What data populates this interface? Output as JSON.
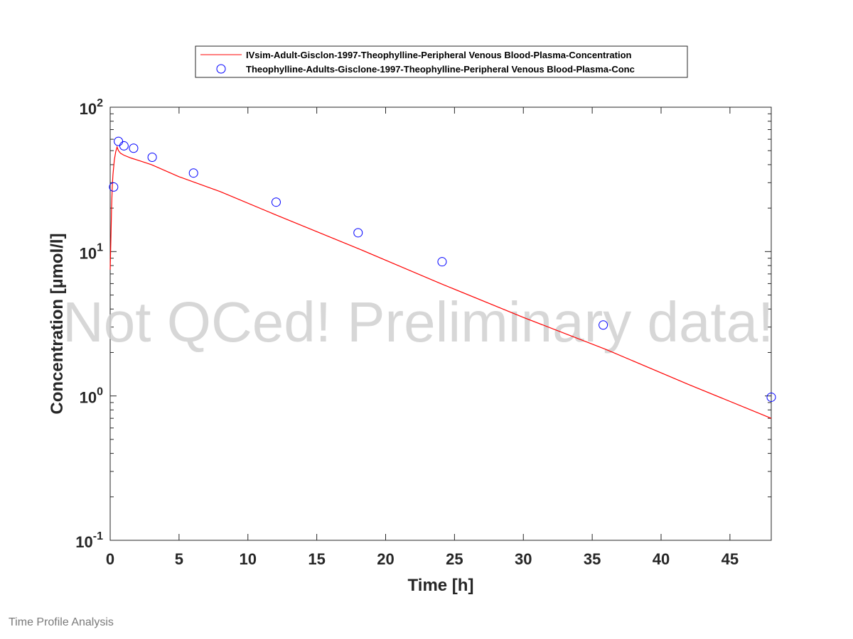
{
  "footer": "Time Profile Analysis",
  "watermark": "Not QCed! Preliminary data!",
  "chart_data": {
    "type": "line",
    "title": "",
    "xlabel": "Time [h]",
    "ylabel": "Concentration [µmol/l]",
    "xlim": [
      0,
      48
    ],
    "ylim": [
      0.1,
      100
    ],
    "yscale": "log",
    "xticks": [
      0,
      5,
      10,
      15,
      20,
      25,
      30,
      35,
      40,
      45
    ],
    "xtick_labels": [
      "0",
      "5",
      "10",
      "15",
      "20",
      "25",
      "30",
      "35",
      "40",
      "45"
    ],
    "yticks": [
      0.1,
      1,
      10,
      100
    ],
    "ytick_labels": [
      {
        "base": "10",
        "exp": "-1"
      },
      {
        "base": "10",
        "exp": "0"
      },
      {
        "base": "10",
        "exp": "1"
      },
      {
        "base": "10",
        "exp": "2"
      }
    ],
    "grid": false,
    "legend_position": "top (outside)",
    "series": [
      {
        "name": "IVsim-Adult-Gisclon-1997-Theophylline-Peripheral Venous Blood-Plasma-Concentration",
        "kind": "line",
        "color": "#ff0000",
        "x": [
          0,
          0.05,
          0.1,
          0.15,
          0.2,
          0.3,
          0.4,
          0.5,
          0.6,
          0.75,
          1,
          1.5,
          2,
          3,
          5,
          8,
          12,
          18,
          24,
          30,
          36,
          42,
          48
        ],
        "y": [
          7.5,
          12,
          20,
          28,
          34,
          43,
          49,
          53,
          50,
          48,
          46.5,
          44.5,
          43,
          40,
          33,
          26,
          18,
          10.5,
          6,
          3.5,
          2.1,
          1.2,
          0.7
        ]
      },
      {
        "name": "Theophylline-Adults-Gisclone-1997-Theophylline-Peripheral Venous Blood-Plasma-Conc",
        "kind": "scatter",
        "color": "#0000ff",
        "x": [
          0.25,
          0.6,
          1.0,
          1.7,
          3.05,
          6.05,
          12.05,
          18.0,
          24.1,
          35.8,
          48.0
        ],
        "y": [
          28,
          58,
          54,
          52,
          45,
          35,
          22,
          13.5,
          8.5,
          3.1,
          0.98
        ]
      }
    ]
  }
}
